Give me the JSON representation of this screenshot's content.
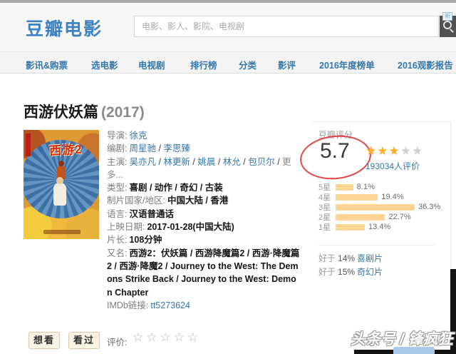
{
  "header": {
    "logo_text": "豆瓣电影",
    "search_placeholder": "电影、影人、影院、电视剧"
  },
  "nav": {
    "items": [
      "影讯&购票",
      "选电影",
      "电视剧",
      "排行榜",
      "分类",
      "影评",
      "2016年度榜单",
      "2016观影报告"
    ],
    "new_badge": "新"
  },
  "movie": {
    "title": "西游伏妖篇",
    "year": "(2017)",
    "poster_text": "西游2",
    "info_rows": [
      {
        "label": "导演:",
        "segs": [
          {
            "t": "徐克",
            "c": "link"
          }
        ]
      },
      {
        "label": "编剧:",
        "segs": [
          {
            "t": "周星驰",
            "c": "link"
          },
          {
            "t": " / ",
            "c": "sep"
          },
          {
            "t": "李思臻",
            "c": "link"
          }
        ]
      },
      {
        "label": "主演:",
        "segs": [
          {
            "t": "吴亦凡",
            "c": "link"
          },
          {
            "t": " / ",
            "c": "sep"
          },
          {
            "t": "林更新",
            "c": "link"
          },
          {
            "t": " / ",
            "c": "sep"
          },
          {
            "t": "姚晨",
            "c": "link"
          },
          {
            "t": " / ",
            "c": "sep"
          },
          {
            "t": "林允",
            "c": "link"
          },
          {
            "t": " / ",
            "c": "sep"
          },
          {
            "t": "包贝尔",
            "c": "link"
          },
          {
            "t": " / ",
            "c": "sep"
          },
          {
            "t": "更多...",
            "c": "more"
          }
        ]
      },
      {
        "label": "类型:",
        "segs": [
          {
            "t": "喜剧 / 动作 / 奇幻 / 古装",
            "c": "bold"
          }
        ]
      },
      {
        "label": "制片国家/地区:",
        "segs": [
          {
            "t": "中国大陆 / 香港",
            "c": "bold"
          }
        ]
      },
      {
        "label": "语言:",
        "segs": [
          {
            "t": "汉语普通话",
            "c": "bold"
          }
        ]
      },
      {
        "label": "上映日期:",
        "segs": [
          {
            "t": "2017-01-28(中国大陆)",
            "c": "bold"
          }
        ]
      },
      {
        "label": "片长:",
        "segs": [
          {
            "t": "108分钟",
            "c": "bold"
          }
        ]
      },
      {
        "label": "又名:",
        "segs": [
          {
            "t": "西游2：伏妖篇 / 西游降魔篇2 / 西游·降魔篇2 / 西游·降魔2 / Journey to the West: The Demons Strike Back / Journey to the West: Demon Chapter",
            "c": "bold"
          }
        ]
      },
      {
        "label": "IMDb链接:",
        "segs": [
          {
            "t": "tt5273624",
            "c": "link"
          }
        ]
      }
    ]
  },
  "rating": {
    "heading": "豆瓣评分",
    "score": "5.7",
    "star_char": "★",
    "stars_on": 3,
    "stars_total": 5,
    "votes_text": "193034人评价",
    "distribution": [
      {
        "label": "5星",
        "pct": "8.1%"
      },
      {
        "label": "4星",
        "pct": "19.4%"
      },
      {
        "label": "3星",
        "pct": "36.3%"
      },
      {
        "label": "2星",
        "pct": "22.7%"
      },
      {
        "label": "1星",
        "pct": "13.4%"
      }
    ],
    "better_than": [
      {
        "prefix": "好于",
        "pct": "14%",
        "genre": "喜剧片"
      },
      {
        "prefix": "好于",
        "pct": "15%",
        "genre": "奇幻片"
      }
    ]
  },
  "actions": {
    "wish_label": "想看",
    "seen_label": "看过",
    "rate_label": "评价:",
    "empty_stars": "☆☆☆☆☆"
  },
  "watermark": {
    "text": "头条号 / 锋疯狂"
  },
  "colors": {
    "brand_blue": "#3e82c2",
    "link_blue": "#3377aa",
    "star_orange": "#ffac2d",
    "bar_tan": "#ffd596",
    "annotation_red": "#e04545"
  }
}
